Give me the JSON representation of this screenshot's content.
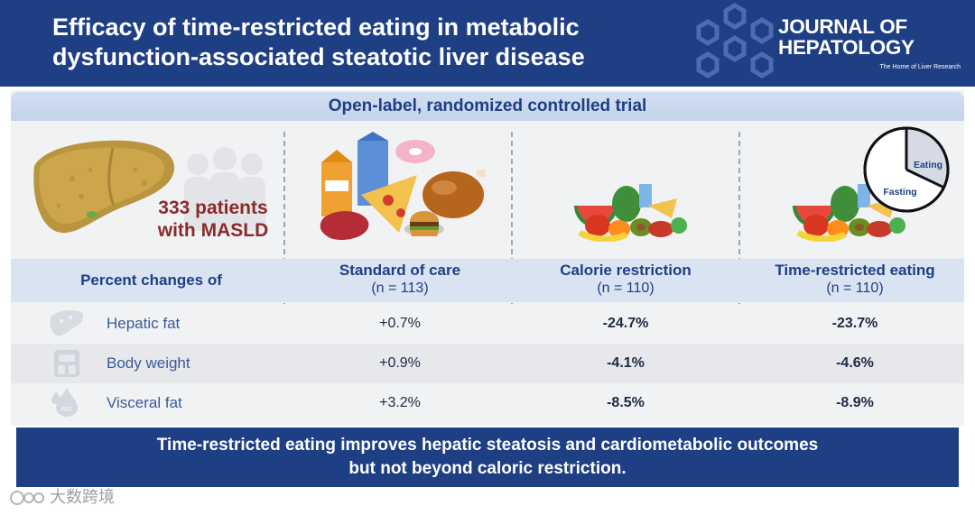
{
  "header": {
    "title": "Efficacy of time-restricted eating in metabolic dysfunction-associated steatotic liver disease",
    "journal_name": "JOURNAL OF HEPATOLOGY",
    "journal_tagline": "The Home of Liver Research"
  },
  "trial": {
    "design": "Open-label, randomized controlled trial"
  },
  "population": {
    "text": "333 patients with MASLD"
  },
  "clock": {
    "eating_label": "Eating",
    "fasting_label": "Fasting"
  },
  "table": {
    "row_header": "Percent changes of",
    "columns": [
      {
        "name": "Standard of care",
        "n": "(n = 113)"
      },
      {
        "name": "Calorie restriction",
        "n": "(n = 110)"
      },
      {
        "name": "Time-restricted eating",
        "n": "(n = 110)"
      }
    ],
    "rows": [
      {
        "label": "Hepatic fat",
        "icon": "liver-icon",
        "values": [
          "+0.7%",
          "-24.7%",
          "-23.7%"
        ]
      },
      {
        "label": "Body weight",
        "icon": "scale-icon",
        "values": [
          "+0.9%",
          "-4.1%",
          "-4.6%"
        ]
      },
      {
        "label": "Visceral fat",
        "icon": "fat-drop-icon",
        "icon_text": "FAT",
        "values": [
          "+3.2%",
          "-8.5%",
          "-8.9%"
        ]
      }
    ]
  },
  "conclusion": "Time-restricted eating improves hepatic steatosis and cardiometabolic outcomes but not beyond caloric restriction.",
  "watermark": "大数跨境",
  "colors": {
    "navy": "#1f3f85",
    "panel": "#f1f2f4",
    "band": "#d9e3f1",
    "population_text": "#8b2a2a"
  }
}
